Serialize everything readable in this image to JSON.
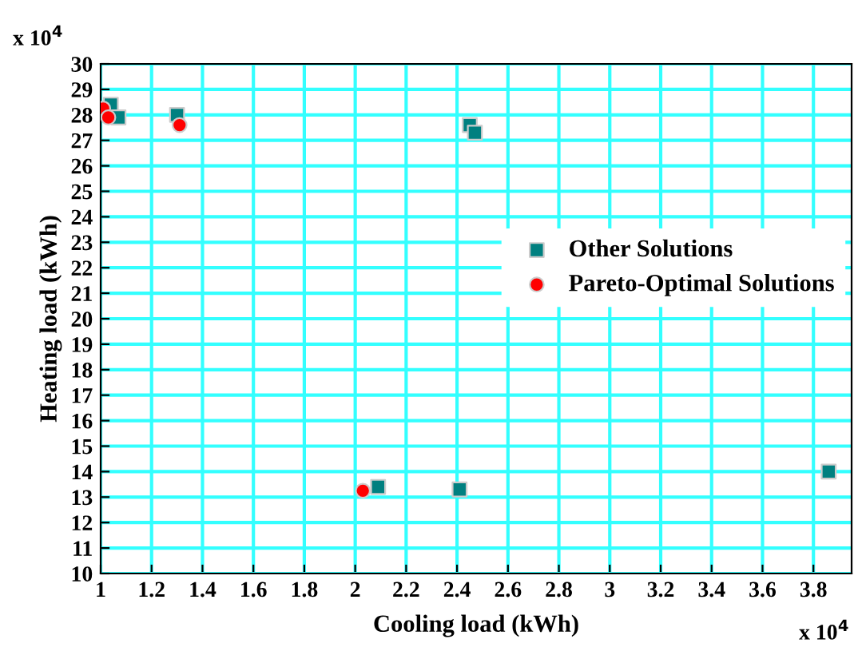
{
  "chart_data": {
    "type": "scatter",
    "xlabel": "Cooling load (kWh)",
    "ylabel": "Heating load (kWh)",
    "xlim": [
      1,
      3.95
    ],
    "xticks": [
      1,
      1.2,
      1.4,
      1.6,
      1.8,
      2,
      2.2,
      2.4,
      2.6,
      2.8,
      3,
      3.2,
      3.4,
      3.6,
      3.8
    ],
    "ylim": [
      10,
      30
    ],
    "yticks": [
      10,
      11,
      12,
      13,
      14,
      15,
      16,
      17,
      18,
      19,
      20,
      21,
      22,
      23,
      24,
      25,
      26,
      27,
      28,
      29,
      30
    ],
    "grid": true,
    "legend": "right",
    "annotations": [
      "x 10$^{4}$",
      "x 10$^{4}$"
    ],
    "series": [
      {
        "name": "Other Solutions",
        "color": "#008080",
        "marker": "square",
        "x": [
          1.04,
          1.07,
          1.3,
          2.45,
          2.47,
          2.09,
          2.41,
          3.86
        ],
        "values": [
          28.4,
          27.9,
          28.0,
          27.6,
          27.3,
          13.4,
          13.3,
          14.0
        ]
      },
      {
        "name": "Pareto-Optimal Solutions",
        "color": "#ff0000",
        "marker": "circle",
        "x": [
          1.01,
          1.03,
          1.31,
          2.03
        ],
        "values": [
          28.25,
          27.9,
          27.6,
          13.25
        ]
      }
    ]
  }
}
